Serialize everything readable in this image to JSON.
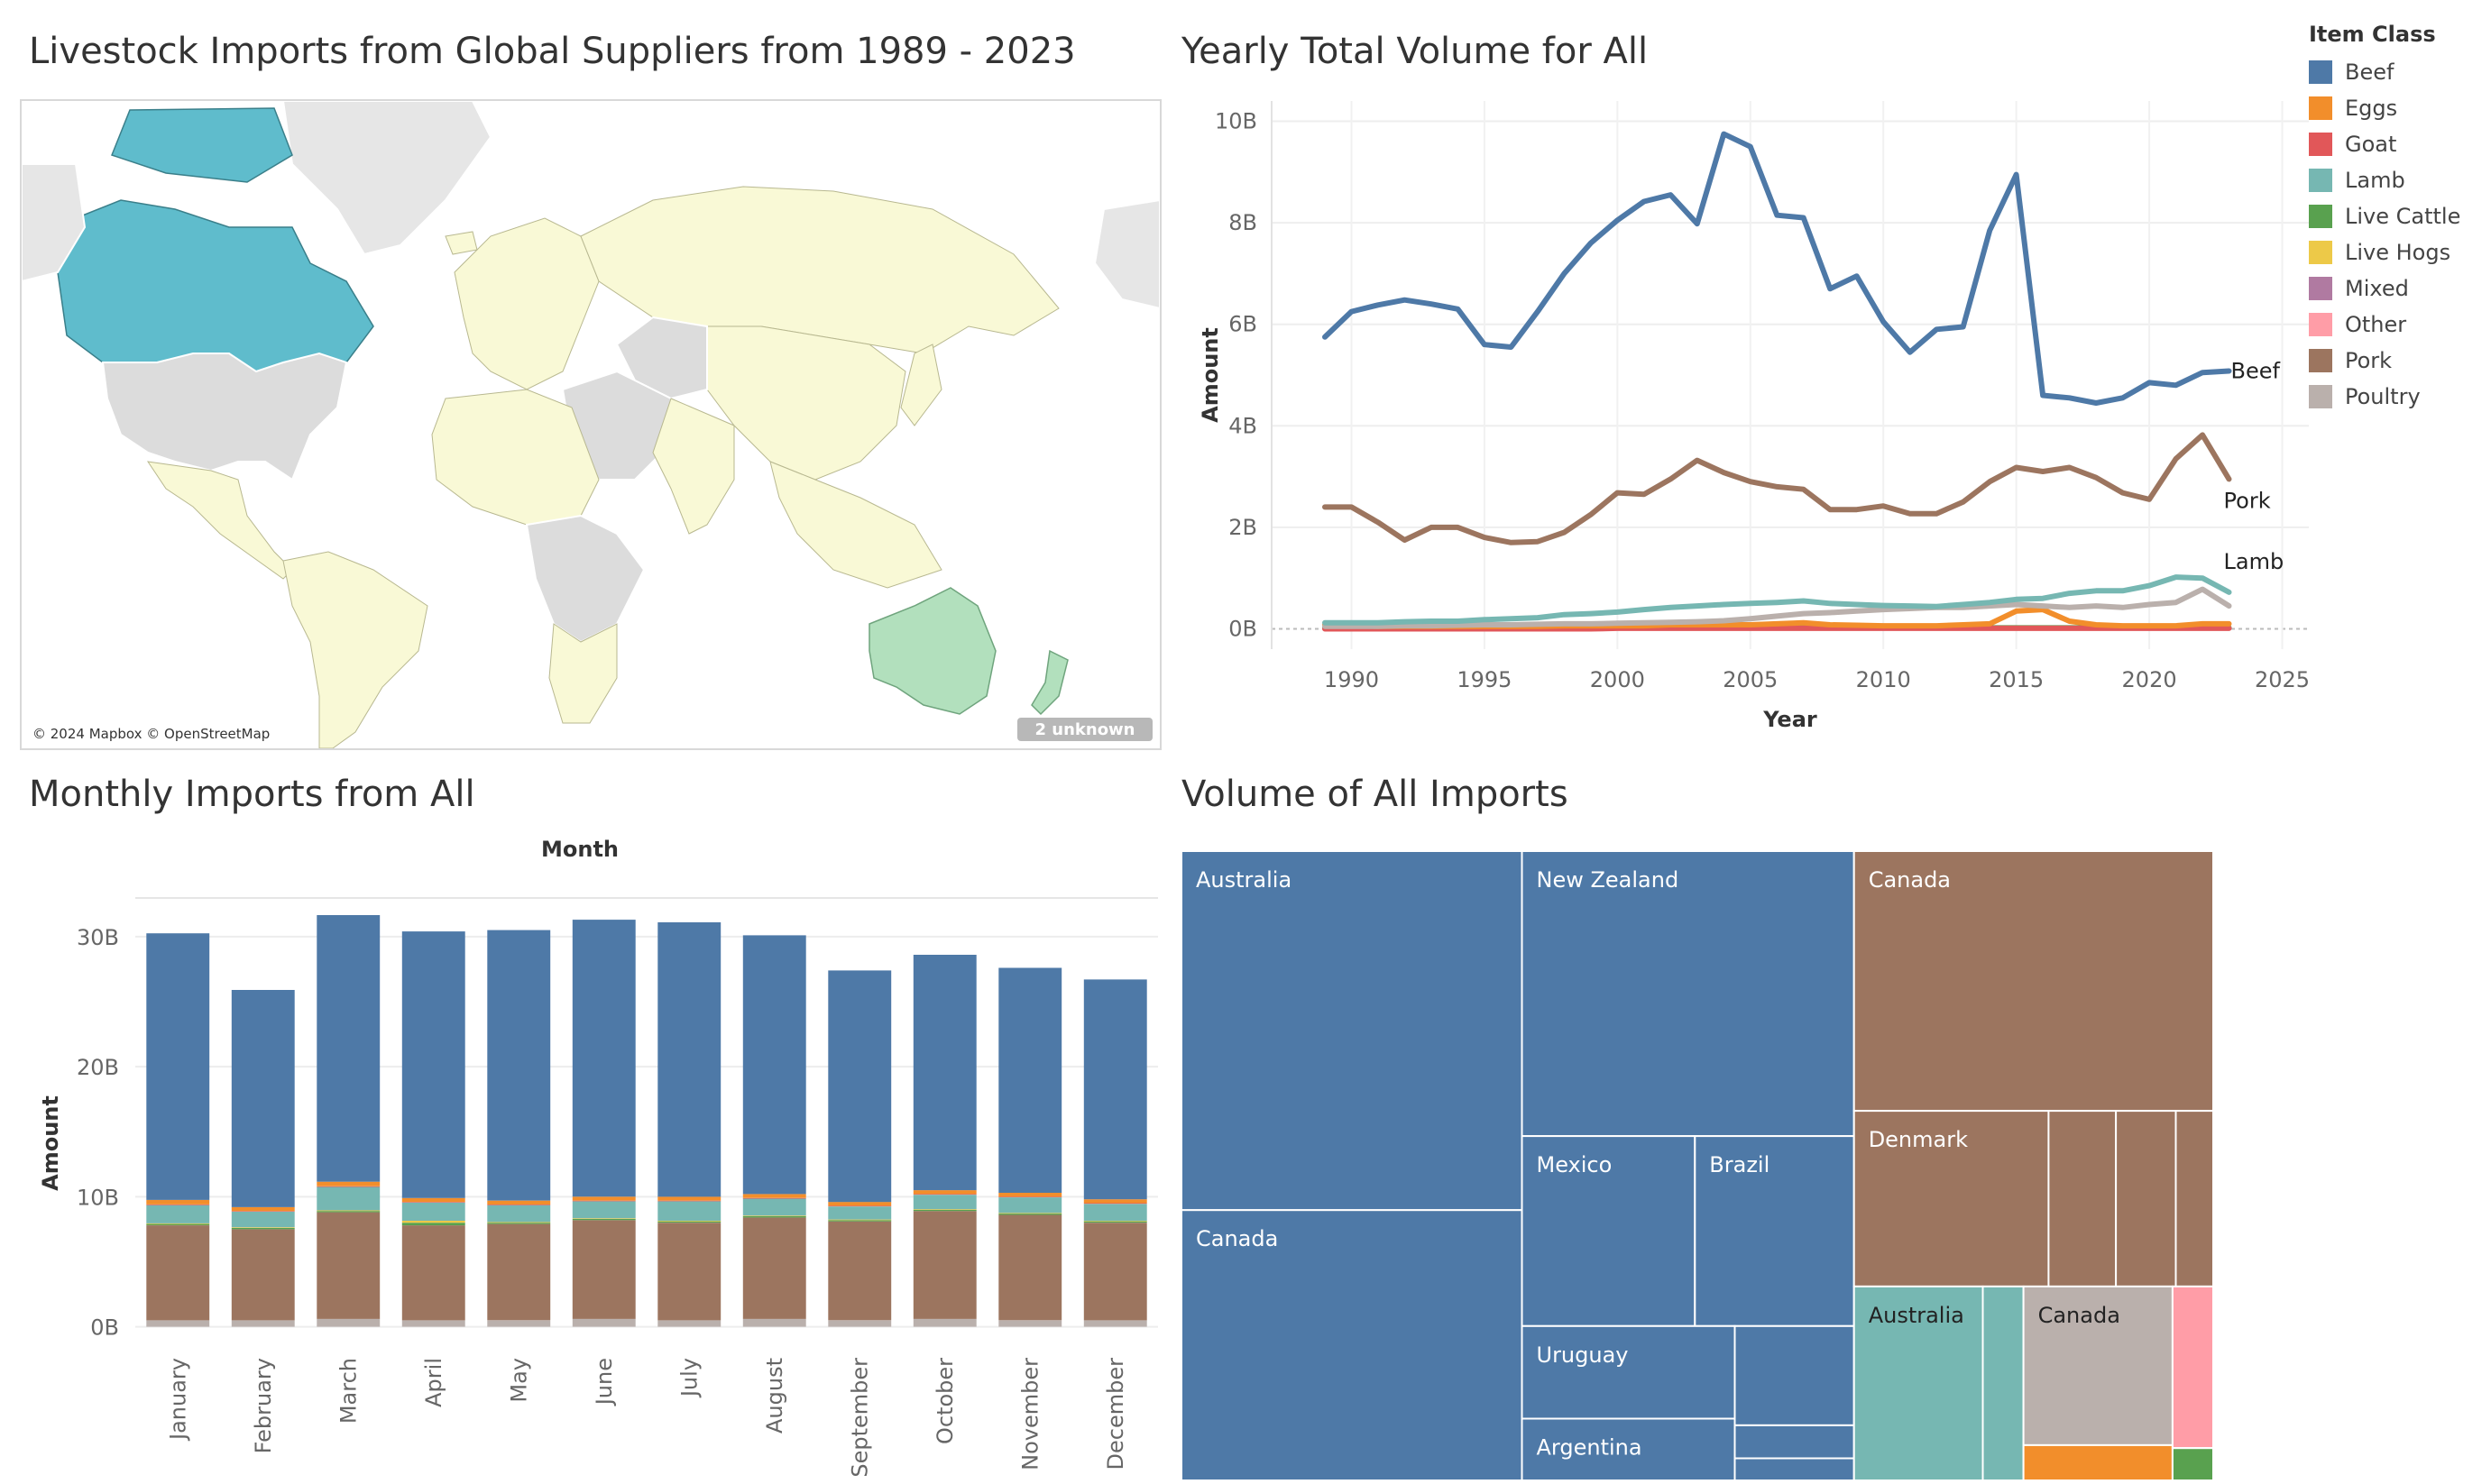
{
  "titles": {
    "map": "Livestock Imports from Global Suppliers from 1989 - 2023",
    "line": "Yearly Total Volume for All",
    "bar": "Monthly Imports from All",
    "treemap": "Volume of All Imports"
  },
  "map": {
    "attribution": "© 2024 Mapbox © OpenStreetMap",
    "unknown_badge": "2 unknown",
    "colors": {
      "canada": "#5fbccc",
      "australia_nz": "#b2e0bd",
      "other_suppliers": "#f9f9d6",
      "no_data": "#dcdcdc",
      "ocean": "#ffffff",
      "unmapped": "#ececec"
    }
  },
  "legend": {
    "title": "Item Class",
    "items": [
      {
        "name": "Beef",
        "color": "#4e79a7"
      },
      {
        "name": "Eggs",
        "color": "#f28e2b"
      },
      {
        "name": "Goat",
        "color": "#e15759"
      },
      {
        "name": "Lamb",
        "color": "#76b7b2"
      },
      {
        "name": "Live Cattle",
        "color": "#59a14f"
      },
      {
        "name": "Live Hogs",
        "color": "#edc948"
      },
      {
        "name": "Mixed",
        "color": "#b07aa1"
      },
      {
        "name": "Other",
        "color": "#ff9da7"
      },
      {
        "name": "Pork",
        "color": "#9c755f"
      },
      {
        "name": "Poultry",
        "color": "#bab0ac"
      }
    ]
  },
  "chart_data": [
    {
      "type": "line",
      "title": "Yearly Total Volume for All",
      "xlabel": "Year",
      "ylabel": "Amount",
      "xlim": [
        1987,
        2026
      ],
      "ylim": [
        -0.4,
        10.4
      ],
      "xticks": [
        1990,
        1995,
        2000,
        2005,
        2010,
        2015,
        2020,
        2025
      ],
      "yticks": [
        {
          "v": 0,
          "label": "0B"
        },
        {
          "v": 2,
          "label": "2B"
        },
        {
          "v": 4,
          "label": "4B"
        },
        {
          "v": 6,
          "label": "6B"
        },
        {
          "v": 8,
          "label": "8B"
        },
        {
          "v": 10,
          "label": "10B"
        }
      ],
      "x": [
        1989,
        1990,
        1991,
        1992,
        1993,
        1994,
        1995,
        1996,
        1997,
        1998,
        1999,
        2000,
        2001,
        2002,
        2003,
        2004,
        2005,
        2006,
        2007,
        2008,
        2009,
        2010,
        2011,
        2012,
        2013,
        2014,
        2015,
        2016,
        2017,
        2018,
        2019,
        2020,
        2021,
        2022,
        2023
      ],
      "series": [
        {
          "name": "Beef",
          "label": "Beef",
          "color": "#4e79a7",
          "values": [
            5.75,
            6.25,
            6.38,
            6.48,
            6.4,
            6.3,
            5.6,
            5.55,
            6.25,
            7.0,
            7.6,
            8.05,
            8.42,
            8.55,
            7.98,
            9.75,
            9.5,
            8.15,
            8.1,
            6.7,
            6.95,
            6.05,
            5.45,
            5.9,
            5.95,
            7.85,
            8.95,
            4.6,
            4.55,
            4.45,
            4.55,
            4.85,
            4.8,
            5.05,
            5.08
          ]
        },
        {
          "name": "Pork",
          "label": "Pork",
          "color": "#9c755f",
          "values": [
            2.4,
            2.4,
            2.1,
            1.75,
            2.0,
            2.0,
            1.8,
            1.7,
            1.72,
            1.9,
            2.25,
            2.68,
            2.65,
            2.95,
            3.32,
            3.08,
            2.9,
            2.8,
            2.75,
            2.35,
            2.35,
            2.42,
            2.27,
            2.27,
            2.5,
            2.9,
            3.18,
            3.1,
            3.18,
            2.98,
            2.68,
            2.55,
            3.35,
            3.82,
            2.95
          ]
        },
        {
          "name": "Lamb",
          "label": "Lamb",
          "color": "#76b7b2",
          "values": [
            0.12,
            0.12,
            0.12,
            0.14,
            0.15,
            0.15,
            0.18,
            0.2,
            0.22,
            0.28,
            0.3,
            0.33,
            0.38,
            0.42,
            0.45,
            0.48,
            0.5,
            0.52,
            0.55,
            0.5,
            0.48,
            0.46,
            0.45,
            0.44,
            0.48,
            0.52,
            0.58,
            0.6,
            0.7,
            0.75,
            0.75,
            0.85,
            1.02,
            1.0,
            0.72
          ]
        },
        {
          "name": "Poultry",
          "color": "#bab0ac",
          "values": [
            0.05,
            0.05,
            0.05,
            0.06,
            0.06,
            0.07,
            0.08,
            0.08,
            0.09,
            0.1,
            0.1,
            0.11,
            0.12,
            0.13,
            0.14,
            0.16,
            0.2,
            0.25,
            0.3,
            0.32,
            0.35,
            0.38,
            0.4,
            0.42,
            0.42,
            0.45,
            0.48,
            0.45,
            0.42,
            0.45,
            0.42,
            0.48,
            0.52,
            0.78,
            0.45
          ]
        },
        {
          "name": "Eggs",
          "color": "#f28e2b",
          "values": [
            0.08,
            0.06,
            0.05,
            0.05,
            0.05,
            0.05,
            0.05,
            0.05,
            0.05,
            0.06,
            0.06,
            0.06,
            0.06,
            0.08,
            0.08,
            0.08,
            0.08,
            0.1,
            0.12,
            0.08,
            0.07,
            0.06,
            0.06,
            0.06,
            0.08,
            0.1,
            0.35,
            0.38,
            0.15,
            0.08,
            0.06,
            0.06,
            0.06,
            0.1,
            0.1
          ]
        },
        {
          "name": "Goat",
          "color": "#e15759",
          "values": [
            0.0,
            0.0,
            0.0,
            0.0,
            0.0,
            0.0,
            0.0,
            0.0,
            0.0,
            0.0,
            0.0,
            0.01,
            0.01,
            0.01,
            0.01,
            0.01,
            0.01,
            0.01,
            0.01,
            0.01,
            0.01,
            0.01,
            0.01,
            0.01,
            0.01,
            0.01,
            0.01,
            0.01,
            0.01,
            0.01,
            0.01,
            0.01,
            0.01,
            0.01,
            0.01
          ]
        },
        {
          "name": "Live Cattle",
          "color": "#59a14f",
          "values": [
            0.02,
            0.02,
            0.02,
            0.02,
            0.02,
            0.02,
            0.02,
            0.02,
            0.02,
            0.02,
            0.02,
            0.02,
            0.02,
            0.02,
            0.02,
            0.02,
            0.02,
            0.02,
            0.02,
            0.02,
            0.02,
            0.02,
            0.02,
            0.02,
            0.02,
            0.02,
            0.02,
            0.02,
            0.02,
            0.02,
            0.02,
            0.02,
            0.02,
            0.02,
            0.02
          ]
        }
      ]
    },
    {
      "type": "bar",
      "title": "Monthly Imports from All",
      "xlabel": "Month",
      "ylabel": "Amount",
      "ylim": [
        -1,
        32
      ],
      "yticks": [
        {
          "v": 0,
          "label": "0B"
        },
        {
          "v": 10,
          "label": "10B"
        },
        {
          "v": 20,
          "label": "20B"
        },
        {
          "v": 30,
          "label": "30B"
        }
      ],
      "categories": [
        "January",
        "February",
        "March",
        "April",
        "May",
        "June",
        "July",
        "August",
        "September",
        "October",
        "November",
        "December"
      ],
      "stack_order": [
        "Poultry",
        "Pork",
        "Live Cattle",
        "Live Hogs",
        "Lamb",
        "Goat",
        "Eggs",
        "Beef"
      ],
      "series": [
        {
          "name": "Poultry",
          "color": "#bab0ac",
          "values": [
            0.5,
            0.5,
            0.6,
            0.5,
            0.5,
            0.6,
            0.5,
            0.6,
            0.5,
            0.6,
            0.5,
            0.5
          ]
        },
        {
          "name": "Pork",
          "color": "#9c755f",
          "values": [
            7.3,
            7.0,
            8.2,
            7.3,
            7.4,
            7.6,
            7.5,
            7.8,
            7.6,
            8.3,
            8.1,
            7.5
          ]
        },
        {
          "name": "Live Cattle",
          "color": "#59a14f",
          "values": [
            0.1,
            0.1,
            0.1,
            0.2,
            0.1,
            0.1,
            0.1,
            0.1,
            0.1,
            0.1,
            0.1,
            0.1
          ]
        },
        {
          "name": "Live Hogs",
          "color": "#edc948",
          "values": [
            0.05,
            0.05,
            0.05,
            0.15,
            0.05,
            0.05,
            0.05,
            0.05,
            0.05,
            0.05,
            0.05,
            0.05
          ]
        },
        {
          "name": "Lamb",
          "color": "#76b7b2",
          "values": [
            1.4,
            1.2,
            1.8,
            1.4,
            1.3,
            1.3,
            1.5,
            1.3,
            1.0,
            1.1,
            1.2,
            1.3
          ]
        },
        {
          "name": "Goat",
          "color": "#e15759",
          "values": [
            0.05,
            0.05,
            0.05,
            0.05,
            0.05,
            0.05,
            0.05,
            0.05,
            0.05,
            0.05,
            0.05,
            0.05
          ]
        },
        {
          "name": "Eggs",
          "color": "#f28e2b",
          "values": [
            0.35,
            0.3,
            0.35,
            0.3,
            0.3,
            0.3,
            0.3,
            0.3,
            0.3,
            0.3,
            0.3,
            0.3
          ]
        },
        {
          "name": "Beef",
          "color": "#4e79a7",
          "values": [
            20.5,
            16.7,
            20.5,
            20.5,
            20.8,
            21.3,
            21.1,
            19.9,
            17.8,
            18.1,
            17.3,
            16.9
          ]
        }
      ]
    },
    {
      "type": "treemap",
      "title": "Volume of All Imports",
      "groups": [
        {
          "name": "Beef",
          "color": "#4e79a7",
          "items": [
            {
              "label": "Australia",
              "value": 93
            },
            {
              "label": "Canada",
              "value": 70
            },
            {
              "label": "New Zealand",
              "value": 72
            },
            {
              "label": "Mexico",
              "value": 25
            },
            {
              "label": "Brazil",
              "value": 23
            },
            {
              "label": "Uruguay",
              "value": 15
            },
            {
              "label": "Argentina",
              "value": 10
            },
            {
              "label": "",
              "value": 9
            },
            {
              "label": "",
              "value": 3
            },
            {
              "label": "",
              "value": 2
            }
          ]
        },
        {
          "name": "Pork",
          "color": "#9c755f",
          "items": [
            {
              "label": "Canada",
              "value": 71
            },
            {
              "label": "Denmark",
              "value": 26
            },
            {
              "label": "",
              "value": 9
            },
            {
              "label": "",
              "value": 8
            },
            {
              "label": "",
              "value": 5
            }
          ]
        },
        {
          "name": "Lamb",
          "color": "#76b7b2",
          "items": [
            {
              "label": "Australia",
              "value": 19
            },
            {
              "label": "",
              "value": 6
            }
          ]
        },
        {
          "name": "Poultry",
          "color": "#bab0ac",
          "items": [
            {
              "label": "Canada",
              "value": 18
            }
          ]
        },
        {
          "name": "Eggs",
          "color": "#f28e2b",
          "items": [
            {
              "label": "",
              "value": 4
            }
          ]
        },
        {
          "name": "Other",
          "color": "#ff9da7",
          "items": [
            {
              "label": "",
              "value": 5
            }
          ]
        },
        {
          "name": "Live Cattle",
          "color": "#59a14f",
          "items": [
            {
              "label": "",
              "value": 1
            }
          ]
        }
      ]
    }
  ]
}
